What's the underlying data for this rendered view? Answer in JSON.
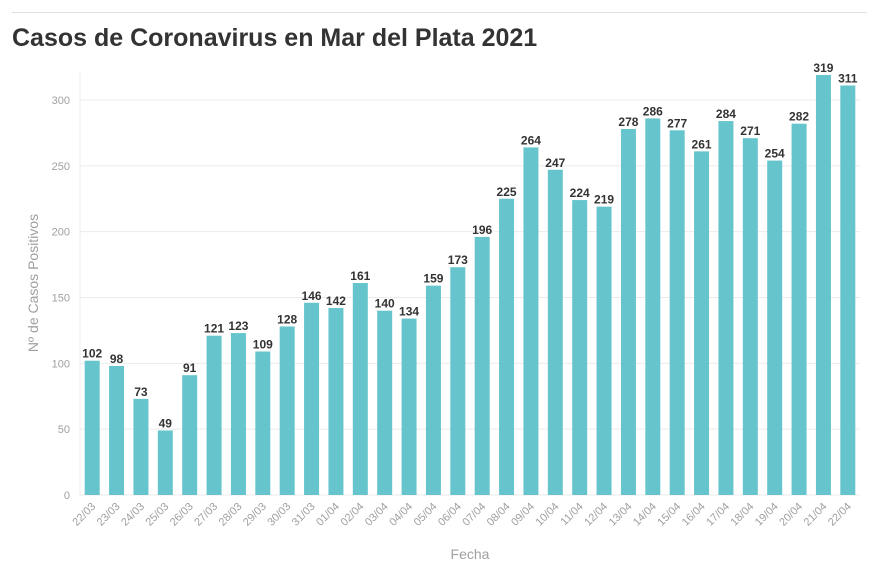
{
  "chart_data": {
    "type": "bar",
    "title": "Casos de Coronavirus en Mar del Plata 2021",
    "xlabel": "Fecha",
    "ylabel": "Nº de Casos Positivos",
    "ylim": [
      0,
      320
    ],
    "yticks": [
      0,
      50,
      100,
      150,
      200,
      250,
      300
    ],
    "grid": true,
    "categories": [
      "22/03",
      "23/03",
      "24/03",
      "25/03",
      "26/03",
      "27/03",
      "28/03",
      "29/03",
      "30/03",
      "31/03",
      "01/04",
      "02/04",
      "03/04",
      "04/04",
      "05/04",
      "06/04",
      "07/04",
      "08/04",
      "09/04",
      "10/04",
      "11/04",
      "12/04",
      "13/04",
      "14/04",
      "15/04",
      "16/04",
      "17/04",
      "18/04",
      "19/04",
      "20/04",
      "21/04",
      "22/04"
    ],
    "values": [
      102,
      98,
      73,
      49,
      91,
      121,
      123,
      109,
      128,
      146,
      142,
      161,
      140,
      134,
      159,
      173,
      196,
      225,
      264,
      247,
      224,
      219,
      278,
      286,
      277,
      261,
      284,
      271,
      254,
      282,
      319,
      311
    ],
    "colors": {
      "bar": "#66c5cc",
      "grid": "#ebebeb",
      "tick": "#a0a0a0",
      "label": "#333333"
    }
  }
}
